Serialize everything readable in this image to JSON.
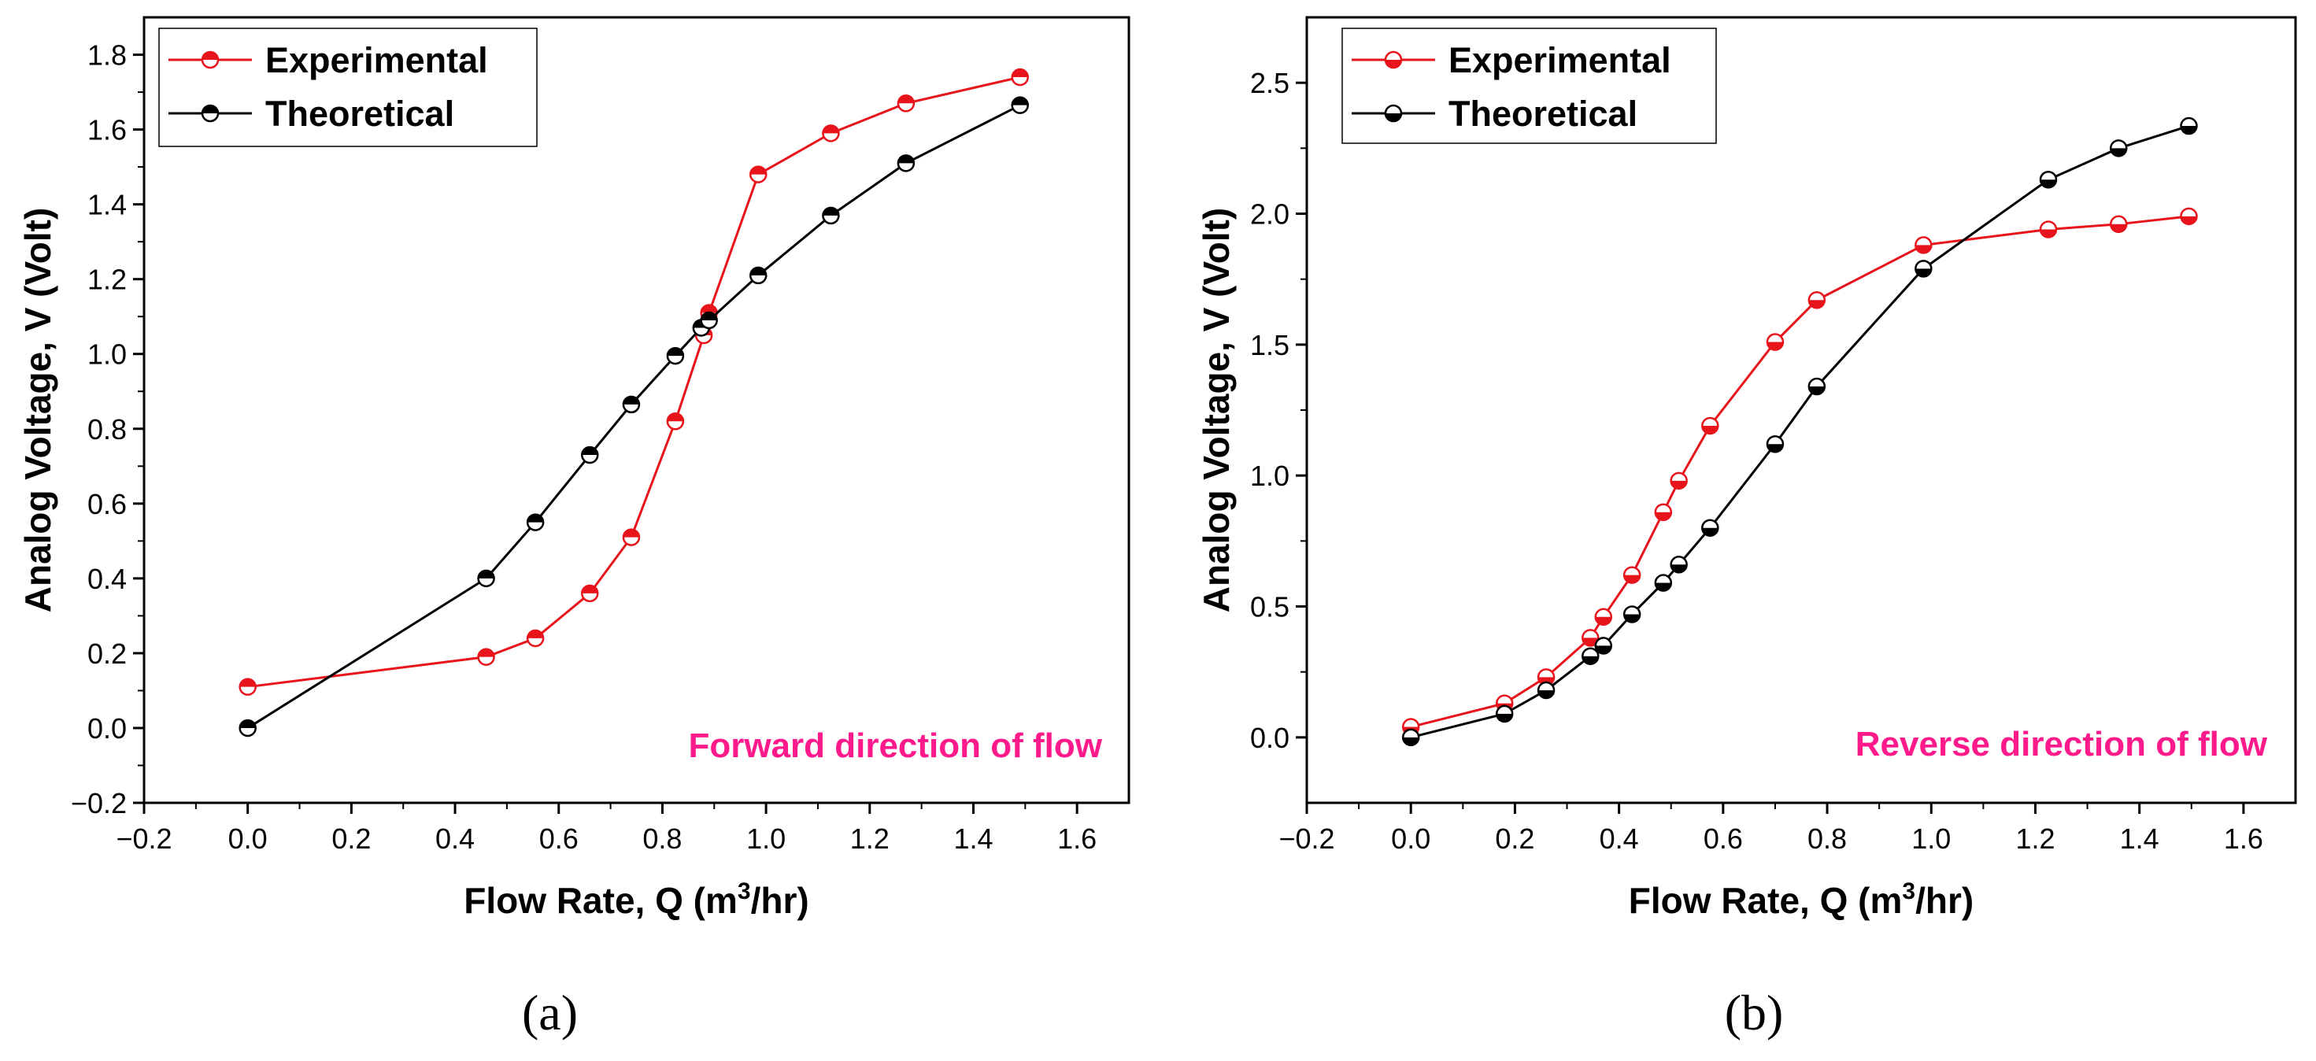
{
  "colors": {
    "experimental": "#e8141b",
    "theoretical": "#000000",
    "annotation": "#ff1a8c"
  },
  "chart_data": [
    {
      "type": "line",
      "panel_label": "(a)",
      "xlabel": "Flow Rate, Q (m",
      "xlabel_sup": "3",
      "xlabel_tail": "/hr)",
      "ylabel": "Analog Voltage, V (Volt)",
      "xlim": [
        -0.2,
        1.7
      ],
      "ylim": [
        -0.2,
        1.9
      ],
      "xticks": [
        -0.2,
        0.0,
        0.2,
        0.4,
        0.6,
        0.8,
        1.0,
        1.2,
        1.4,
        1.6
      ],
      "xtick_labels": [
        "−0.2",
        "0.0",
        "0.2",
        "0.4",
        "0.6",
        "0.8",
        "1.0",
        "1.2",
        "1.4",
        "1.6"
      ],
      "yticks": [
        -0.2,
        0.0,
        0.2,
        0.4,
        0.6,
        0.8,
        1.0,
        1.2,
        1.4,
        1.6,
        1.8
      ],
      "ytick_labels": [
        "−0.2",
        "0.0",
        "0.2",
        "0.4",
        "0.6",
        "0.8",
        "1.0",
        "1.2",
        "1.4",
        "1.6",
        "1.8"
      ],
      "marker_style": "half-filled-top",
      "legend_position": "top-left",
      "annotation": "Forward direction of flow",
      "series": [
        {
          "name": "Experimental",
          "color": "#e8141b",
          "x": [
            0.0,
            0.46,
            0.555,
            0.66,
            0.74,
            0.825,
            0.88,
            0.89,
            0.985,
            1.125,
            1.27,
            1.49
          ],
          "y": [
            0.11,
            0.19,
            0.24,
            0.36,
            0.51,
            0.82,
            1.05,
            1.11,
            1.48,
            1.59,
            1.67,
            1.74
          ]
        },
        {
          "name": "Theoretical",
          "color": "#000000",
          "x": [
            0.0,
            0.46,
            0.555,
            0.66,
            0.74,
            0.825,
            0.875,
            0.89,
            0.985,
            1.125,
            1.27,
            1.49
          ],
          "y": [
            0.0,
            0.4,
            0.55,
            0.73,
            0.865,
            0.995,
            1.07,
            1.09,
            1.21,
            1.37,
            1.51,
            1.665
          ]
        }
      ]
    },
    {
      "type": "line",
      "panel_label": "(b)",
      "xlabel": "Flow Rate, Q (m",
      "xlabel_sup": "3",
      "xlabel_tail": "/hr)",
      "ylabel": "Analog Voltage, V (Volt)",
      "xlim": [
        -0.2,
        1.7
      ],
      "ylim": [
        -0.25,
        2.75
      ],
      "xticks": [
        -0.2,
        0.0,
        0.2,
        0.4,
        0.6,
        0.8,
        1.0,
        1.2,
        1.4,
        1.6
      ],
      "xtick_labels": [
        "−0.2",
        "0.0",
        "0.2",
        "0.4",
        "0.6",
        "0.8",
        "1.0",
        "1.2",
        "1.4",
        "1.6"
      ],
      "yticks": [
        0.0,
        0.5,
        1.0,
        1.5,
        2.0,
        2.5
      ],
      "ytick_labels": [
        "0.0",
        "0.5",
        "1.0",
        "1.5",
        "2.0",
        "2.5"
      ],
      "marker_style": "half-filled-bottom",
      "legend_position": "top-left",
      "annotation": "Reverse direction of flow",
      "series": [
        {
          "name": "Experimental",
          "color": "#e8141b",
          "x": [
            0.0,
            0.18,
            0.26,
            0.345,
            0.37,
            0.425,
            0.485,
            0.515,
            0.575,
            0.7,
            0.78,
            0.985,
            1.225,
            1.36,
            1.495
          ],
          "y": [
            0.04,
            0.13,
            0.23,
            0.38,
            0.46,
            0.62,
            0.86,
            0.98,
            1.19,
            1.51,
            1.67,
            1.88,
            1.94,
            1.96,
            1.99
          ]
        },
        {
          "name": "Theoretical",
          "color": "#000000",
          "x": [
            0.0,
            0.18,
            0.26,
            0.345,
            0.37,
            0.425,
            0.485,
            0.515,
            0.575,
            0.7,
            0.78,
            0.985,
            1.225,
            1.36,
            1.495
          ],
          "y": [
            0.0,
            0.09,
            0.18,
            0.31,
            0.35,
            0.47,
            0.59,
            0.66,
            0.8,
            1.12,
            1.34,
            1.79,
            2.13,
            2.25,
            2.335
          ]
        }
      ]
    }
  ]
}
